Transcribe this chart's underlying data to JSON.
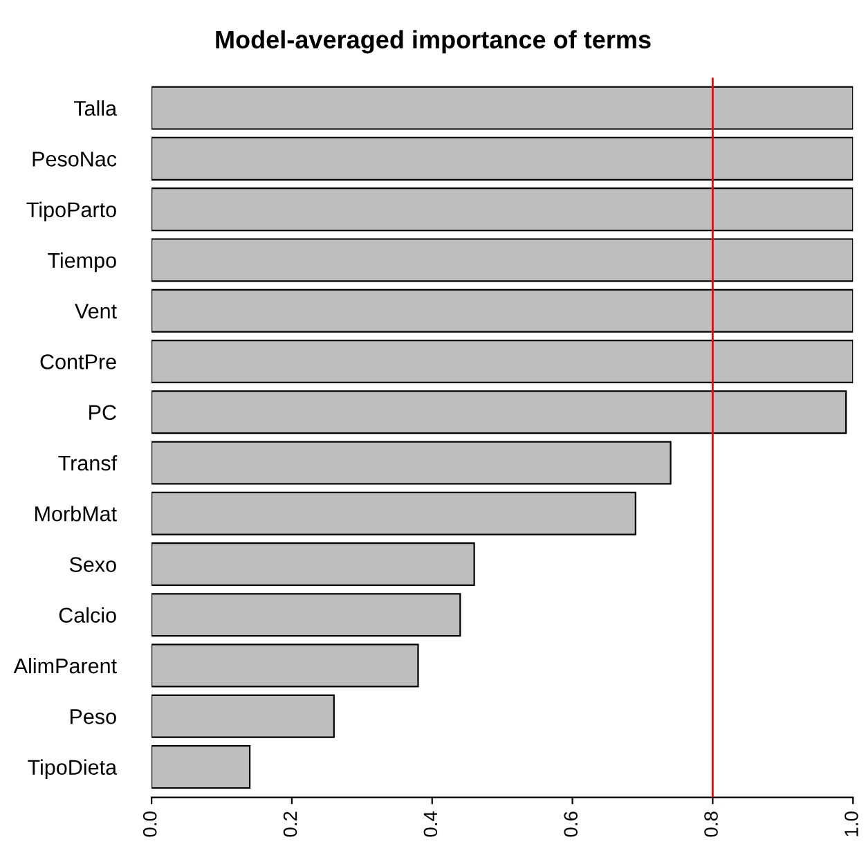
{
  "chart_data": {
    "type": "bar",
    "orientation": "horizontal",
    "title": "Model-averaged importance of terms",
    "categories": [
      "Talla",
      "PesoNac",
      "TipoParto",
      "Tiempo",
      "Vent",
      "ContPre",
      "PC",
      "Transf",
      "MorbMat",
      "Sexo",
      "Calcio",
      "AlimParent",
      "Peso",
      "TipoDieta"
    ],
    "values": [
      1.0,
      1.0,
      1.0,
      1.0,
      1.0,
      1.0,
      0.99,
      0.74,
      0.69,
      0.46,
      0.44,
      0.38,
      0.26,
      0.14
    ],
    "color": "#bebebe",
    "xlim": [
      0,
      1.0
    ],
    "xticks": [
      {
        "value": 0,
        "label": "0.0"
      },
      {
        "value": 0.2,
        "label": "0.2"
      },
      {
        "value": 0.4,
        "label": "0.4"
      },
      {
        "value": 0.6,
        "label": "0.6"
      },
      {
        "value": 0.8,
        "label": "0.8"
      },
      {
        "value": 1.0,
        "label": "1.0"
      }
    ],
    "ref_lines": [
      {
        "axis": "x",
        "value": 0.8,
        "color": "#ff0000"
      }
    ],
    "grid": false,
    "legend": false
  }
}
